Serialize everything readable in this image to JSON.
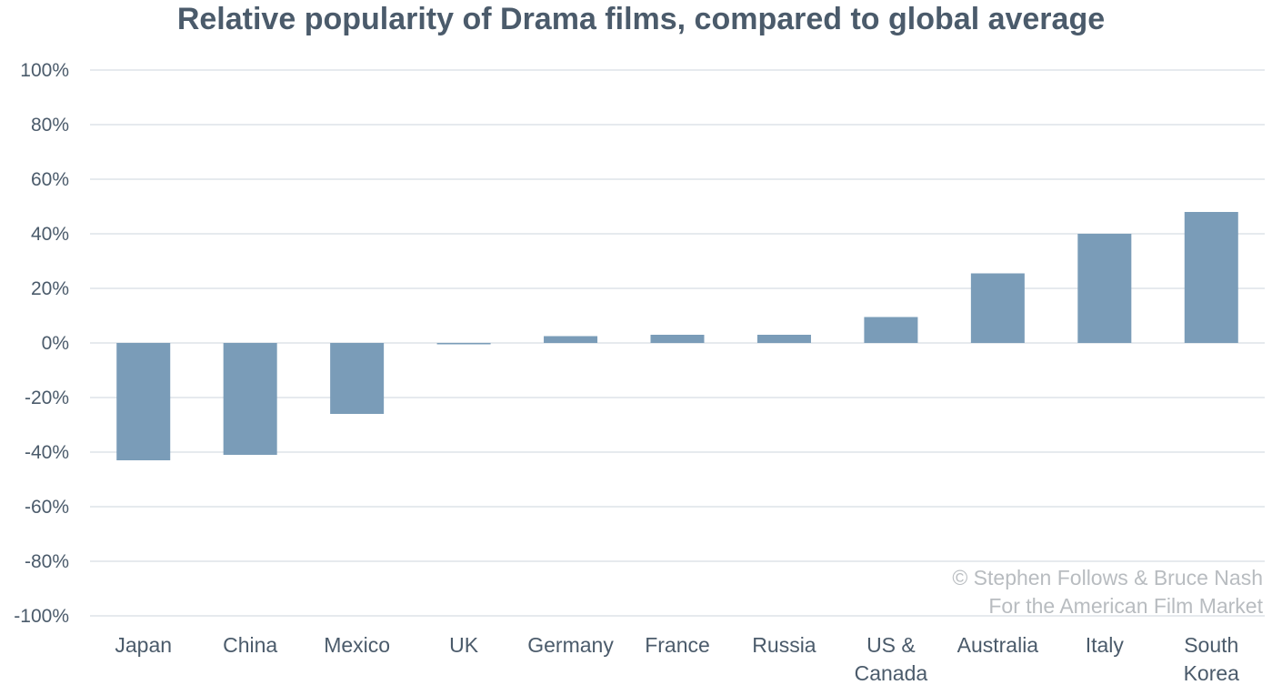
{
  "chart_data": {
    "type": "bar",
    "title": "Relative popularity of Drama films, compared to global average",
    "xlabel": "",
    "ylabel": "",
    "ylim": [
      -100,
      100
    ],
    "yticks": [
      "100%",
      "80%",
      "60%",
      "40%",
      "20%",
      "0%",
      "-20%",
      "-40%",
      "-60%",
      "-80%",
      "-100%"
    ],
    "categories": [
      [
        "Japan"
      ],
      [
        "China"
      ],
      [
        "Mexico"
      ],
      [
        "UK"
      ],
      [
        "Germany"
      ],
      [
        "France"
      ],
      [
        "Russia"
      ],
      [
        "US &",
        "Canada"
      ],
      [
        "Australia"
      ],
      [
        "Italy"
      ],
      [
        "South",
        "Korea"
      ]
    ],
    "values": [
      -43,
      -41,
      -26,
      -0.5,
      2.5,
      3,
      3,
      9.5,
      25.5,
      40,
      48
    ],
    "bar_color": "#7a9cb8",
    "grid": true,
    "grid_color": "#dde3e8",
    "credit": [
      "© Stephen Follows & Bruce Nash",
      "For the American Film Market"
    ]
  }
}
